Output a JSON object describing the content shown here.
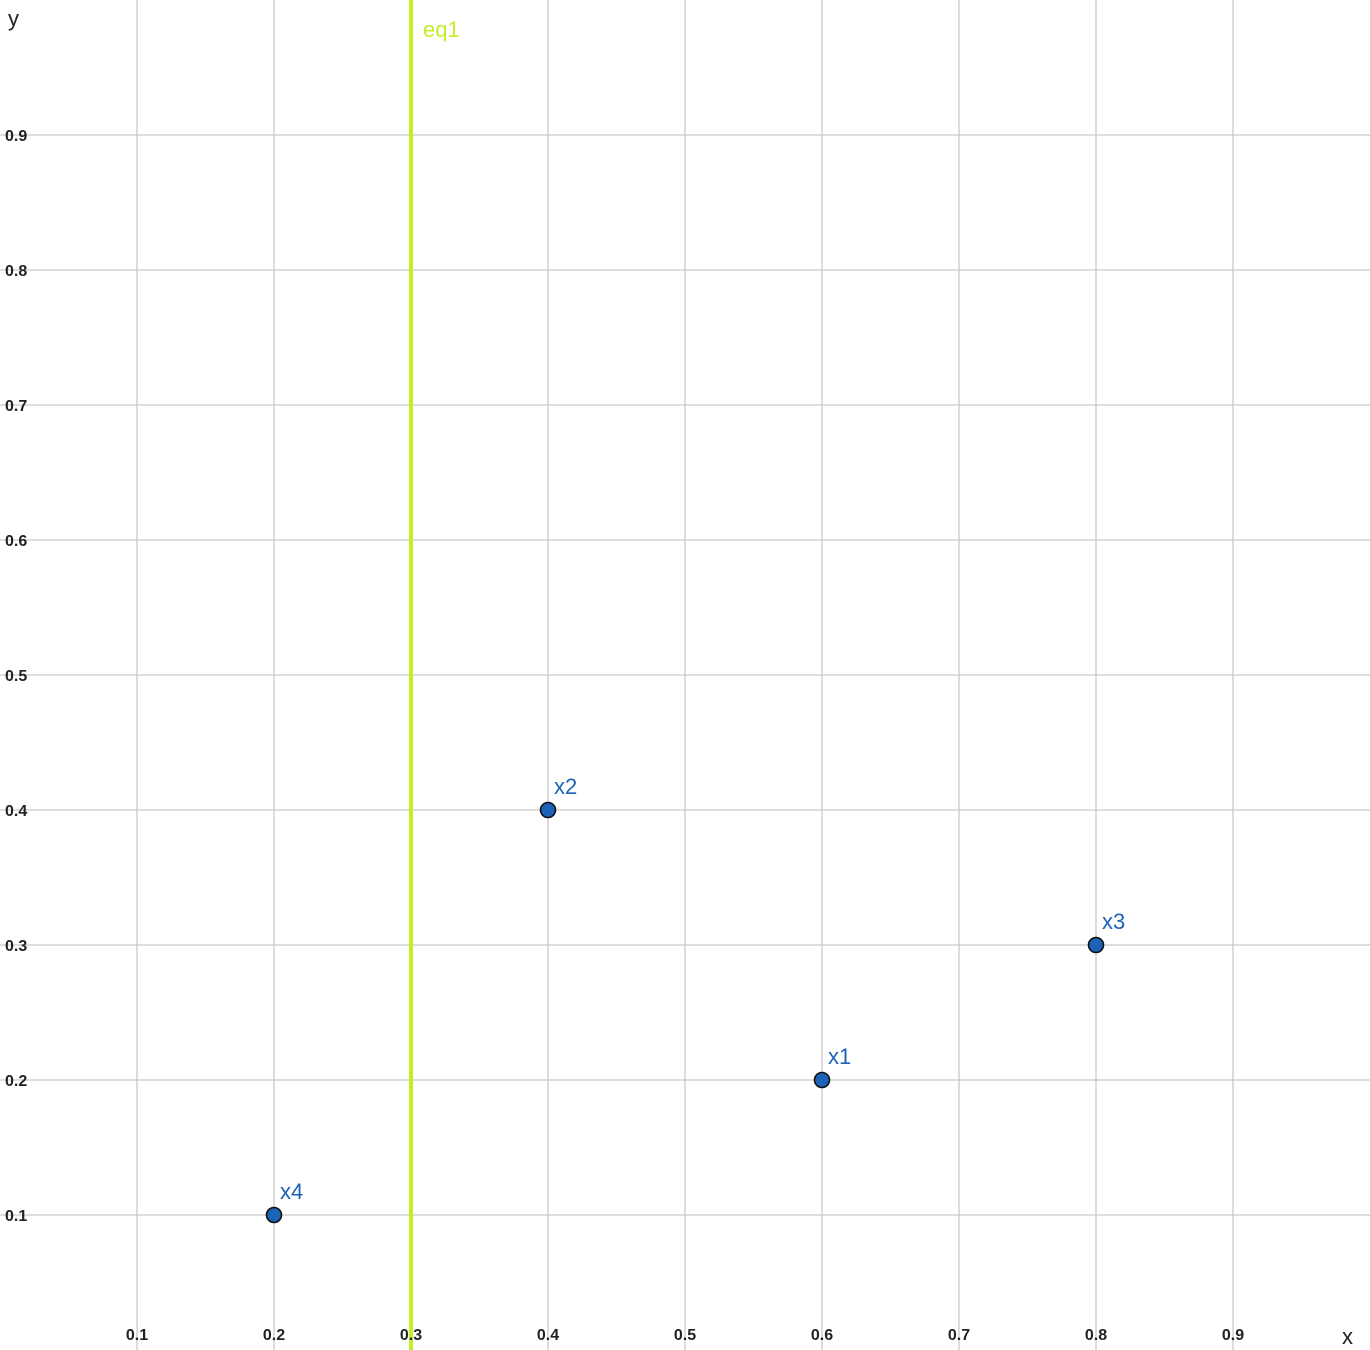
{
  "chart_data": {
    "type": "scatter",
    "x_label": "x",
    "y_label": "y",
    "xlim": [
      0,
      1
    ],
    "ylim": [
      0,
      1
    ],
    "xticks": [
      0.1,
      0.2,
      0.3,
      0.4,
      0.5,
      0.6,
      0.7,
      0.8,
      0.9
    ],
    "yticks": [
      0.1,
      0.2,
      0.3,
      0.4,
      0.5,
      0.6,
      0.7,
      0.8,
      0.9
    ],
    "grid": true,
    "points": {
      "labels": [
        "x1",
        "x2",
        "x3",
        "x4"
      ],
      "x": [
        0.6,
        0.4,
        0.8,
        0.2
      ],
      "y": [
        0.2,
        0.4,
        0.3,
        0.1
      ],
      "color": "#1c63b8"
    },
    "vertical_lines": [
      {
        "label": "eq1",
        "x": 0.3,
        "color": "#c5ee2a"
      }
    ]
  }
}
